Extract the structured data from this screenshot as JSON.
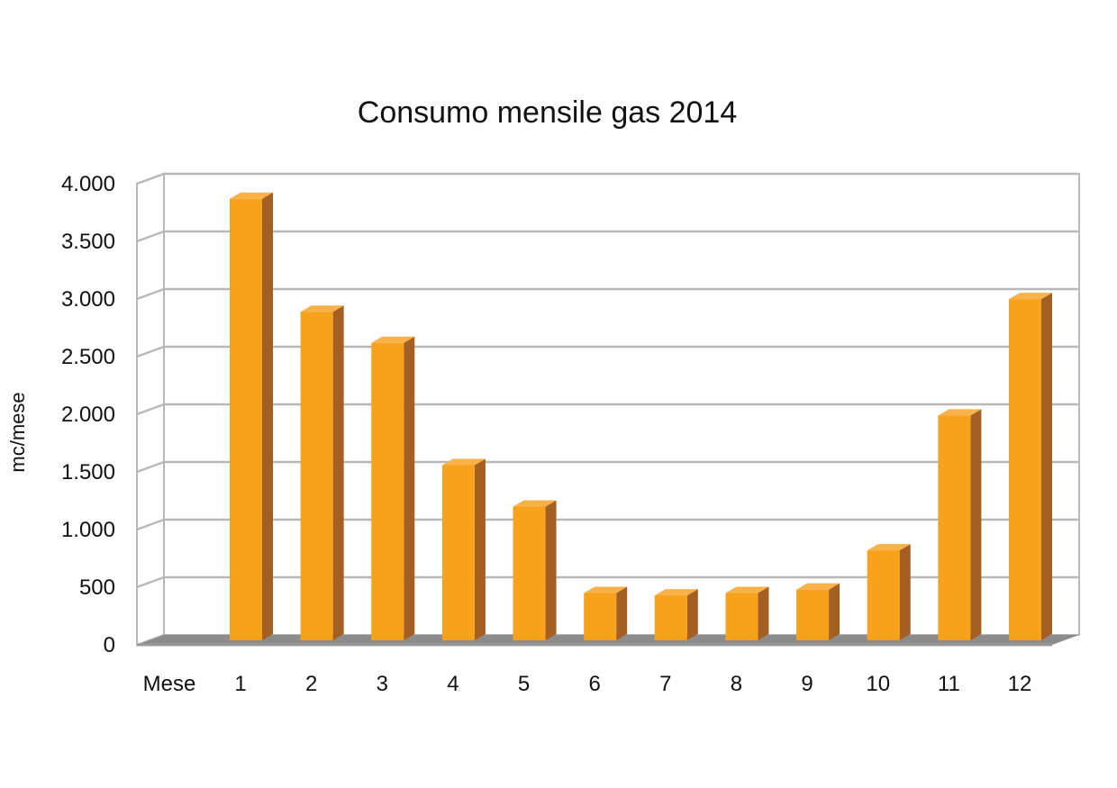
{
  "chart_data": {
    "type": "bar",
    "title": "Consumo mensile gas 2014",
    "xlabel": "Mese",
    "ylabel": "mc/mese",
    "categories": [
      "1",
      "2",
      "3",
      "4",
      "5",
      "6",
      "7",
      "8",
      "9",
      "10",
      "11",
      "12"
    ],
    "values": [
      3830,
      2850,
      2580,
      1520,
      1160,
      410,
      390,
      410,
      440,
      780,
      1950,
      2960
    ],
    "ylim": [
      0,
      4000
    ],
    "y_ticks": [
      0,
      500,
      1000,
      1500,
      2000,
      2500,
      3000,
      3500,
      4000
    ],
    "y_tick_labels": [
      "0",
      "500",
      "1.000",
      "1.500",
      "2.000",
      "2.500",
      "3.000",
      "3.500",
      "4.000"
    ],
    "grid": true,
    "style": "3d",
    "colors": {
      "bar_front": "#f7a11c",
      "bar_side": "#a45f22",
      "bar_top": "#f9b24a",
      "gridline": "#b8b8b8",
      "floor": "#8c8c8c"
    }
  }
}
